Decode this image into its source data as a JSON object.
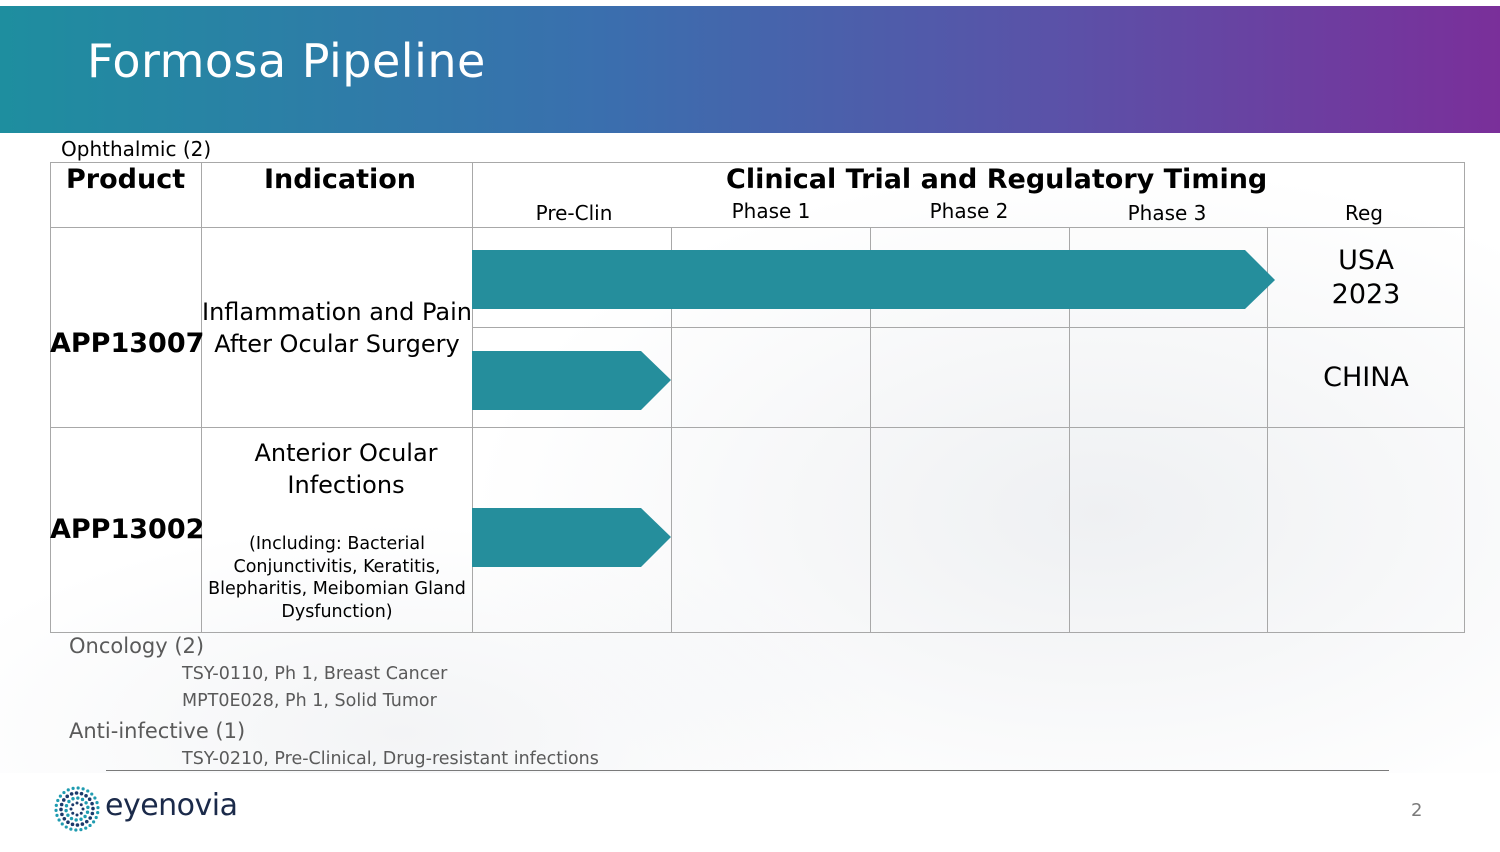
{
  "header": {
    "title": "Formosa Pipeline"
  },
  "sections": {
    "ophthalmic": "Ophthalmic (2)",
    "oncology": "Oncology (2)",
    "oncology_items": [
      "TSY-0110, Ph 1, Breast Cancer",
      "MPT0E028, Ph 1, Solid Tumor"
    ],
    "antiinfective": "Anti-infective (1)",
    "antiinfective_items": [
      "TSY-0210, Pre-Clinical, Drug-resistant infections"
    ]
  },
  "table": {
    "col_product": "Product",
    "col_indication": "Indication",
    "col_timing": "Clinical Trial and Regulatory Timing",
    "phases": [
      "Pre-Clin",
      "Phase 1",
      "Phase 2",
      "Phase 3",
      "Reg"
    ],
    "rows": [
      {
        "product": "APP13007",
        "indication_lines": [
          "Inflammation and Pain",
          "After Ocular Surgery"
        ],
        "tracks": [
          {
            "progress_phases": 4,
            "reg_lines": [
              "USA",
              "2023"
            ]
          },
          {
            "progress_phases": 1,
            "reg_lines": [
              "CHINA"
            ]
          }
        ]
      },
      {
        "product": "APP13002",
        "indication_lines": [
          "Anterior Ocular",
          "Infections"
        ],
        "indication_note_lines": [
          "(Including: Bacterial",
          "Conjunctivitis, Keratitis,",
          "Blepharitis, Meibomian Gland",
          "Dysfunction)"
        ],
        "tracks": [
          {
            "progress_phases": 1,
            "reg_lines": []
          }
        ]
      }
    ],
    "arrow_color": "#258e9c"
  },
  "footer": {
    "brand": "eyenovia",
    "page_number": "2"
  }
}
